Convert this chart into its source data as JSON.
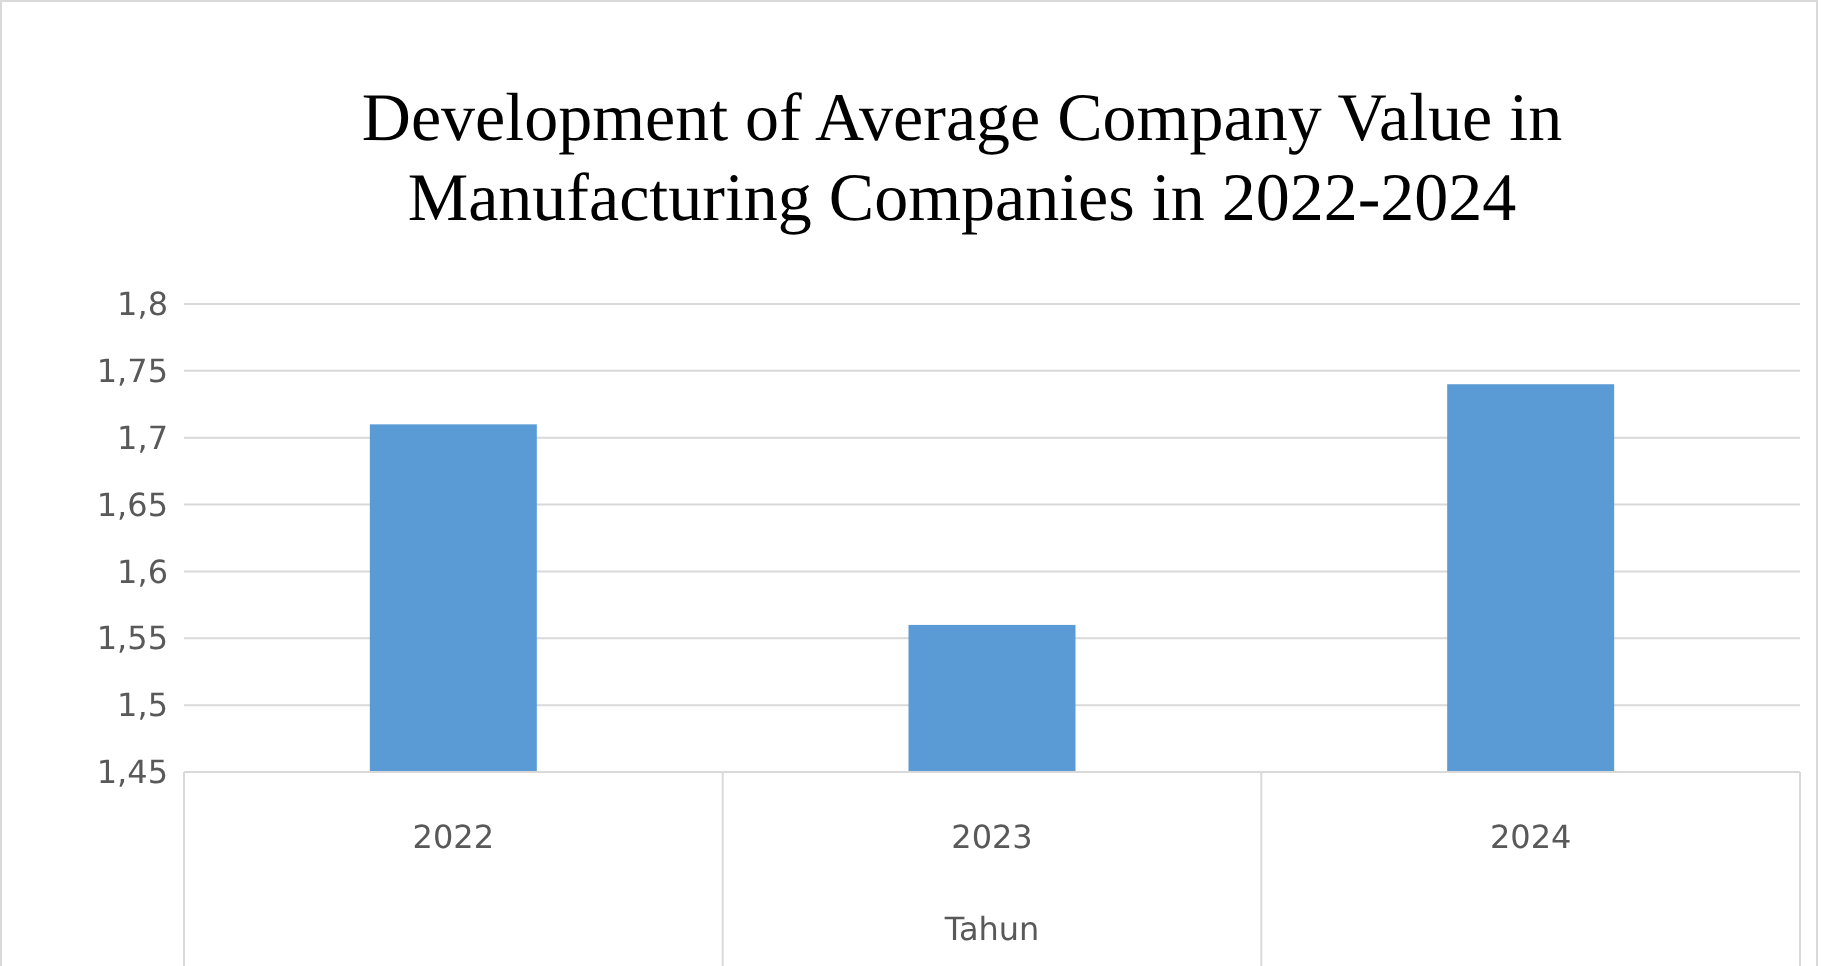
{
  "chart_data": {
    "type": "bar",
    "title": "Development of Average Company Value in Manufacturing Companies in 2022-2024",
    "xlabel": "Tahun",
    "categories": [
      "2022",
      "2023",
      "2024"
    ],
    "values": [
      1.71,
      1.56,
      1.74
    ],
    "color": "#5b9bd5",
    "ylim": [
      1.45,
      1.8
    ],
    "yticks": [
      {
        "value": 1.45,
        "label": "1,45"
      },
      {
        "value": 1.5,
        "label": "1,5"
      },
      {
        "value": 1.55,
        "label": "1,55"
      },
      {
        "value": 1.6,
        "label": "1,6"
      },
      {
        "value": 1.65,
        "label": "1,65"
      },
      {
        "value": 1.7,
        "label": "1,7"
      },
      {
        "value": 1.75,
        "label": "1,75"
      },
      {
        "value": 1.8,
        "label": "1,8"
      }
    ],
    "grid": "y"
  }
}
